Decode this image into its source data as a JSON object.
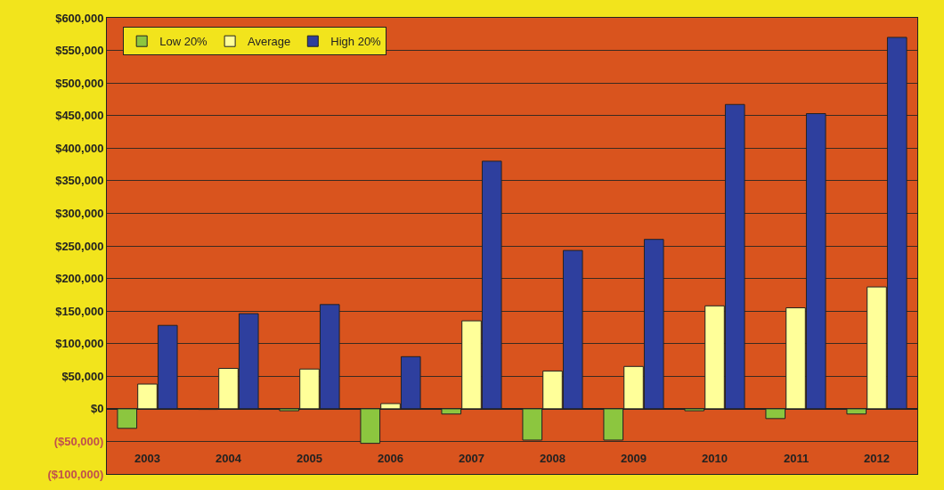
{
  "chart_data": {
    "type": "bar",
    "categories": [
      "2003",
      "2004",
      "2005",
      "2006",
      "2007",
      "2008",
      "2009",
      "2010",
      "2011",
      "2012"
    ],
    "series": [
      {
        "name": "Low 20%",
        "color": "#8cc63f",
        "values": [
          -30000,
          -1000,
          -3000,
          -53000,
          -8000,
          -48000,
          -48000,
          -3000,
          -15000,
          -8000
        ]
      },
      {
        "name": "Average",
        "color": "#ffff99",
        "values": [
          38000,
          62000,
          61000,
          8000,
          135000,
          58000,
          65000,
          158000,
          155000,
          187000
        ]
      },
      {
        "name": "High 20%",
        "color": "#2e3f9e",
        "values": [
          128000,
          146000,
          160000,
          80000,
          380000,
          243000,
          260000,
          467000,
          453000,
          570000
        ]
      }
    ],
    "ylim": [
      -100000,
      600000
    ],
    "yticks": [
      {
        "value": -100000,
        "label": "($100,000)"
      },
      {
        "value": -50000,
        "label": "($50,000)"
      },
      {
        "value": 0,
        "label": "$0"
      },
      {
        "value": 50000,
        "label": "$50,000"
      },
      {
        "value": 100000,
        "label": "$100,000"
      },
      {
        "value": 150000,
        "label": "$150,000"
      },
      {
        "value": 200000,
        "label": "$200,000"
      },
      {
        "value": 250000,
        "label": "$250,000"
      },
      {
        "value": 300000,
        "label": "$300,000"
      },
      {
        "value": 350000,
        "label": "$350,000"
      },
      {
        "value": 400000,
        "label": "$400,000"
      },
      {
        "value": 450000,
        "label": "$450,000"
      },
      {
        "value": 500000,
        "label": "$500,000"
      },
      {
        "value": 550000,
        "label": "$550,000"
      },
      {
        "value": 600000,
        "label": "$600,000"
      }
    ],
    "grid": "y",
    "legend": "top left"
  }
}
